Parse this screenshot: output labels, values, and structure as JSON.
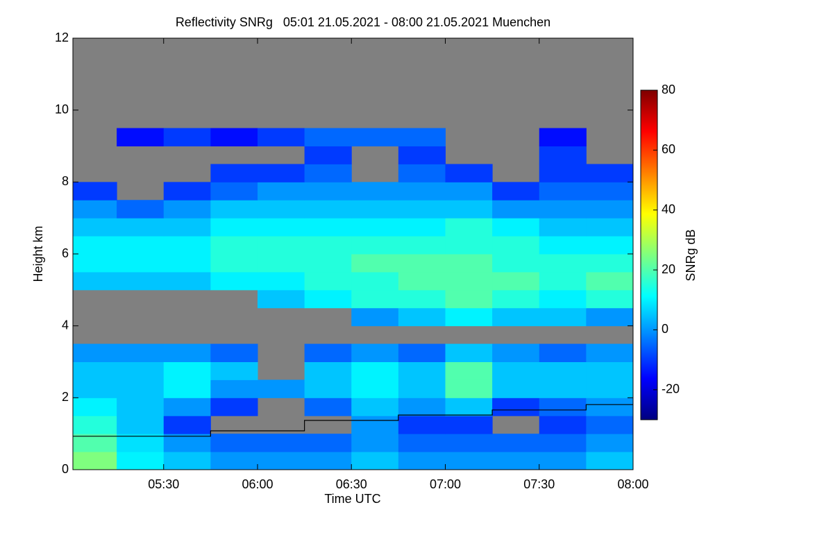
{
  "chart_data": {
    "type": "heatmap",
    "title": "Reflectivity SNRg   05:01 21.05.2021 - 08:00 21.05.2021 Muenchen",
    "x_label": "Time UTC",
    "y_label": "Height km",
    "colorbar_label": "SNRg dB",
    "xlim": [
      5.0167,
      8.0
    ],
    "ylim": [
      0,
      12
    ],
    "xticks": [
      {
        "value": 5.5,
        "label": "05:30"
      },
      {
        "value": 6.0,
        "label": "06:00"
      },
      {
        "value": 6.5,
        "label": "06:30"
      },
      {
        "value": 7.0,
        "label": "07:00"
      },
      {
        "value": 7.5,
        "label": "07:30"
      },
      {
        "value": 8.0,
        "label": "08:00"
      }
    ],
    "yticks": [
      0,
      2,
      4,
      6,
      8,
      10,
      12
    ],
    "zlim": [
      -30,
      80
    ],
    "zticks": [
      -20,
      0,
      20,
      40,
      60,
      80
    ],
    "colormap": [
      "#00007f",
      "#0000ff",
      "#007fff",
      "#00ffff",
      "#7fff7f",
      "#ffff00",
      "#ff7f00",
      "#ff0000",
      "#7f0000"
    ],
    "missing_color": "#808080",
    "x_bins": [
      5.0167,
      5.25,
      5.5,
      5.75,
      6.0,
      6.25,
      6.5,
      6.75,
      7.0,
      7.25,
      7.5,
      7.75,
      8.0
    ],
    "y_bins": [
      0,
      0.5,
      1,
      1.5,
      2,
      2.5,
      3,
      3.5,
      4,
      4.5,
      5,
      5.5,
      6,
      6.5,
      7,
      7.5,
      8,
      8.5,
      9,
      9.5,
      10,
      10.5,
      11,
      11.5,
      12
    ],
    "values": [
      [
        25,
        10,
        5,
        0,
        0,
        0,
        5,
        0,
        0,
        0,
        0,
        5
      ],
      [
        20,
        8,
        0,
        -5,
        -5,
        -5,
        0,
        -5,
        -5,
        -5,
        -5,
        0
      ],
      [
        15,
        5,
        -10,
        null,
        null,
        null,
        0,
        -10,
        -10,
        null,
        -10,
        -5
      ],
      [
        10,
        5,
        0,
        -10,
        null,
        -5,
        5,
        0,
        5,
        -10,
        -5,
        0
      ],
      [
        5,
        5,
        10,
        0,
        0,
        5,
        10,
        5,
        20,
        5,
        5,
        5
      ],
      [
        5,
        5,
        10,
        5,
        null,
        5,
        10,
        5,
        20,
        5,
        5,
        5
      ],
      [
        0,
        0,
        0,
        -5,
        null,
        -5,
        0,
        -5,
        5,
        0,
        -5,
        0
      ],
      [
        null,
        null,
        null,
        null,
        null,
        null,
        null,
        null,
        null,
        null,
        null,
        null
      ],
      [
        null,
        null,
        null,
        null,
        null,
        null,
        0,
        5,
        10,
        5,
        5,
        0
      ],
      [
        null,
        null,
        null,
        null,
        5,
        10,
        15,
        15,
        20,
        15,
        10,
        15
      ],
      [
        5,
        5,
        5,
        10,
        10,
        15,
        15,
        20,
        20,
        20,
        15,
        20
      ],
      [
        10,
        10,
        10,
        15,
        15,
        15,
        20,
        20,
        20,
        15,
        15,
        15
      ],
      [
        10,
        10,
        10,
        15,
        15,
        15,
        15,
        15,
        15,
        15,
        10,
        10
      ],
      [
        5,
        5,
        5,
        10,
        10,
        10,
        10,
        10,
        15,
        10,
        5,
        5
      ],
      [
        0,
        -5,
        0,
        5,
        5,
        5,
        5,
        5,
        5,
        0,
        0,
        0
      ],
      [
        -10,
        null,
        -10,
        -5,
        0,
        0,
        0,
        0,
        0,
        -10,
        -5,
        -5
      ],
      [
        null,
        null,
        null,
        -10,
        -10,
        -5,
        null,
        -5,
        -10,
        null,
        -10,
        -10
      ],
      [
        null,
        null,
        null,
        null,
        null,
        -10,
        null,
        -10,
        null,
        null,
        -10,
        null
      ],
      [
        null,
        -15,
        -10,
        -15,
        -10,
        -5,
        -5,
        -5,
        null,
        null,
        -15,
        null
      ],
      [
        null,
        null,
        null,
        null,
        null,
        null,
        null,
        null,
        null,
        null,
        null,
        null
      ],
      [
        null,
        null,
        null,
        null,
        null,
        null,
        null,
        null,
        null,
        null,
        null,
        null
      ],
      [
        null,
        null,
        null,
        null,
        null,
        null,
        null,
        null,
        null,
        null,
        null,
        null
      ],
      [
        null,
        null,
        null,
        null,
        null,
        null,
        null,
        null,
        null,
        null,
        null,
        null
      ],
      [
        null,
        null,
        null,
        null,
        null,
        null,
        null,
        null,
        null,
        null,
        null,
        null
      ]
    ],
    "line": {
      "x": [
        5.0167,
        5.75,
        6.25,
        6.75,
        7.25,
        7.75
      ],
      "values": [
        0.93,
        1.08,
        1.37,
        1.52,
        1.66,
        1.81
      ],
      "color": "#000000"
    }
  }
}
